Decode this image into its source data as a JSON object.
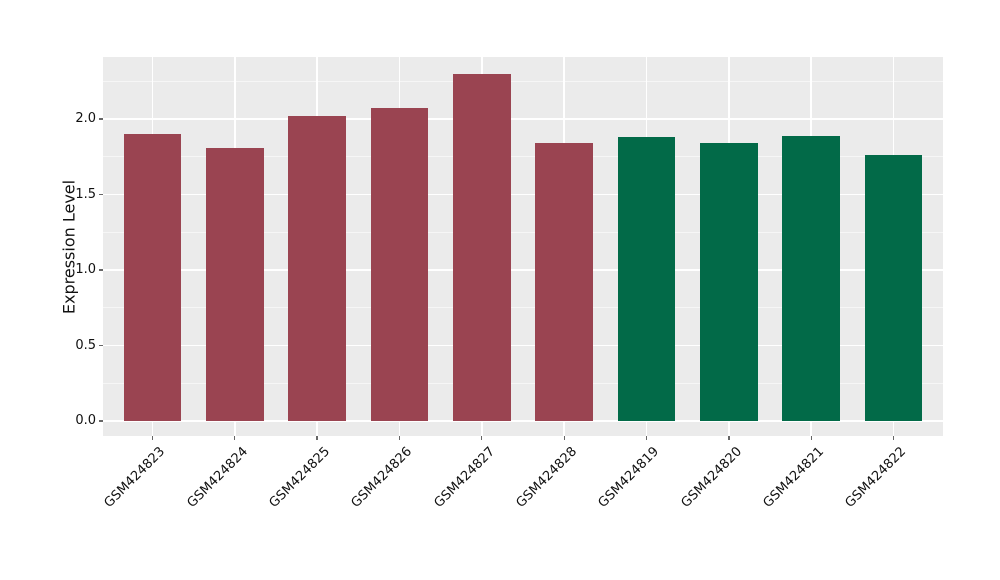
{
  "chart_data": {
    "type": "bar",
    "title": "",
    "xlabel": "",
    "ylabel": "Expression Level",
    "categories": [
      "GSM424823",
      "GSM424824",
      "GSM424825",
      "GSM424826",
      "GSM424827",
      "GSM424828",
      "GSM424819",
      "GSM424820",
      "GSM424821",
      "GSM424822"
    ],
    "values": [
      1.9,
      1.81,
      2.02,
      2.07,
      2.3,
      1.84,
      1.88,
      1.84,
      1.89,
      1.76
    ],
    "bar_colors": [
      "#9A4451",
      "#9A4451",
      "#9A4451",
      "#9A4451",
      "#9A4451",
      "#9A4451",
      "#026A48",
      "#026A48",
      "#026A48",
      "#026A48"
    ],
    "group_colors": {
      "red_group": "#9A4451",
      "green_group": "#026A48"
    },
    "yticks": [
      0.0,
      0.5,
      1.0,
      1.5,
      2.0
    ],
    "ytick_labels": [
      "0.0",
      "0.5",
      "1.0",
      "1.5",
      "2.0"
    ],
    "minor_yticks": [
      0.25,
      0.75,
      1.25,
      1.75,
      2.25
    ],
    "ylim": [
      -0.1,
      2.41
    ],
    "grid": true,
    "legend_position": "none",
    "panel_bg": "#EBEBEB",
    "figure_bg": "#FFFFFF",
    "grid_color": "#FFFFFF",
    "tick_color": "#666666",
    "text_color": "#111111"
  }
}
